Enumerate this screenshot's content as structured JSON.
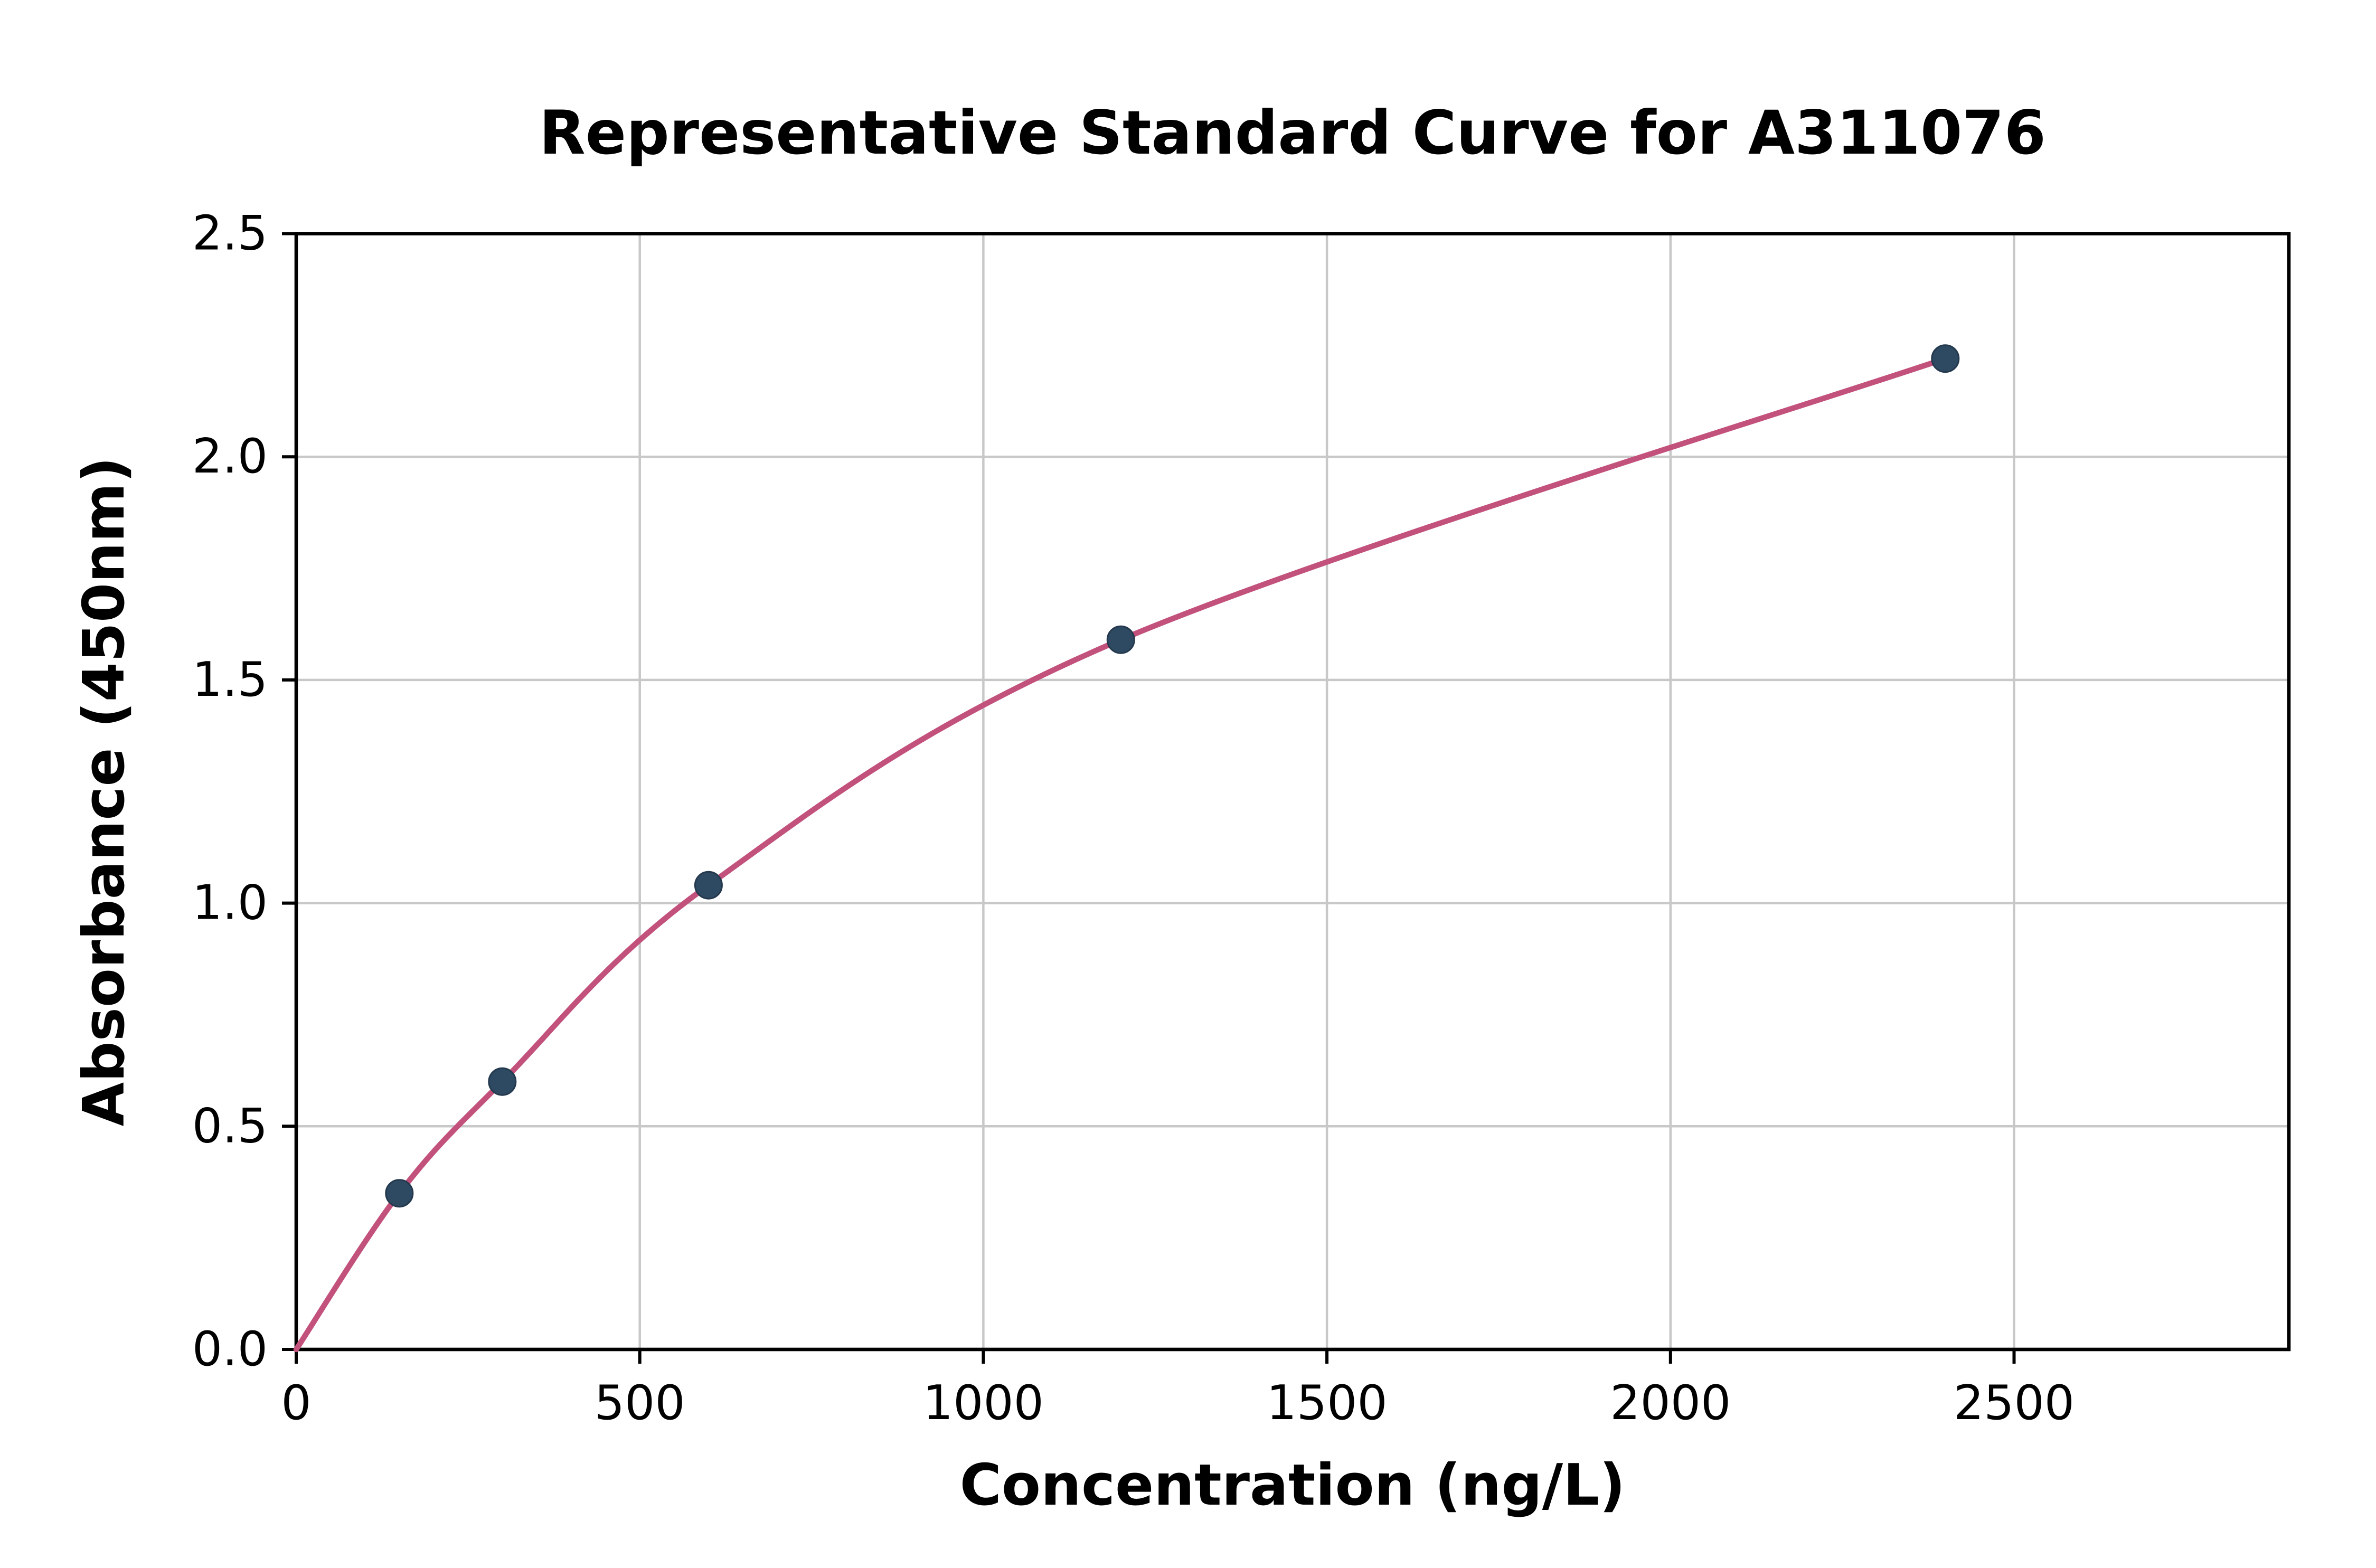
{
  "chart_data": {
    "type": "scatter",
    "title": "Representative Standard Curve for A311076",
    "xlabel": "Concentration (ng/L)",
    "ylabel": "Absorbance (450nm)",
    "xlim": [
      0,
      2900
    ],
    "ylim": [
      0,
      2.5
    ],
    "grid": true,
    "legend": "none",
    "xticks": {
      "values": [
        0,
        500,
        1000,
        1500,
        2000,
        2500
      ],
      "labels": [
        "0",
        "500",
        "1000",
        "1500",
        "2000",
        "2500"
      ]
    },
    "yticks": {
      "values": [
        0,
        0.5,
        1.0,
        1.5,
        2.0,
        2.5
      ],
      "labels": [
        "0.0",
        "0.5",
        "1.0",
        "1.5",
        "2.0",
        "2.5"
      ]
    },
    "points": [
      {
        "x": 150,
        "y": 0.35
      },
      {
        "x": 300,
        "y": 0.6
      },
      {
        "x": 600,
        "y": 1.04
      },
      {
        "x": 1200,
        "y": 1.59
      },
      {
        "x": 2400,
        "y": 2.22
      }
    ],
    "curve_points": [
      [
        0,
        0.0
      ],
      [
        150,
        0.35
      ],
      [
        300,
        0.6
      ],
      [
        600,
        1.04
      ],
      [
        1200,
        1.59
      ],
      [
        2400,
        2.22
      ]
    ],
    "colors": {
      "curve": "#c2517b",
      "point_fill": "#2e4a62",
      "point_edge": "#24394d",
      "grid": "#c8c8c8",
      "axis": "#000000",
      "background": "#ffffff"
    }
  }
}
